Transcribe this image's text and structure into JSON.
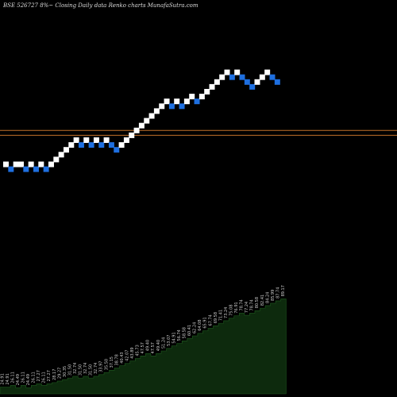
{
  "chart_data": {
    "type": "renko",
    "title": "BSE 526727 8%~ Closing Daily data Renko charts MunafaSutra.com",
    "colors": {
      "up": "#ffffff",
      "down": "#1e6fe0",
      "level_line": "#c0702a",
      "volume_area": "#0d2a0d",
      "volume_outline": "#1f5a1f",
      "volume_label": "#cccccc"
    },
    "bricks": [
      {
        "dir": "up",
        "y": 0.0
      },
      {
        "dir": "down",
        "y": -1.0
      },
      {
        "dir": "up",
        "y": 0.0
      },
      {
        "dir": "up",
        "y": 0.0
      },
      {
        "dir": "down",
        "y": -1.0
      },
      {
        "dir": "up",
        "y": 0.0
      },
      {
        "dir": "down",
        "y": -1.0
      },
      {
        "dir": "up",
        "y": 0.0
      },
      {
        "dir": "down",
        "y": -1.0
      },
      {
        "dir": "up",
        "y": 0.0
      },
      {
        "dir": "up",
        "y": 1.0
      },
      {
        "dir": "up",
        "y": 2.0
      },
      {
        "dir": "up",
        "y": 3.0
      },
      {
        "dir": "up",
        "y": 4.0
      },
      {
        "dir": "up",
        "y": 5.0
      },
      {
        "dir": "down",
        "y": 4.0
      },
      {
        "dir": "up",
        "y": 5.0
      },
      {
        "dir": "down",
        "y": 4.0
      },
      {
        "dir": "up",
        "y": 5.0
      },
      {
        "dir": "down",
        "y": 4.0
      },
      {
        "dir": "up",
        "y": 5.0
      },
      {
        "dir": "down",
        "y": 4.0
      },
      {
        "dir": "down",
        "y": 3.0
      },
      {
        "dir": "up",
        "y": 4.0
      },
      {
        "dir": "up",
        "y": 5.0
      },
      {
        "dir": "up",
        "y": 6.0
      },
      {
        "dir": "up",
        "y": 7.0
      },
      {
        "dir": "up",
        "y": 8.0
      },
      {
        "dir": "up",
        "y": 9.0
      },
      {
        "dir": "up",
        "y": 10.0
      },
      {
        "dir": "up",
        "y": 11.0
      },
      {
        "dir": "up",
        "y": 12.0
      },
      {
        "dir": "up",
        "y": 13.0
      },
      {
        "dir": "down",
        "y": 12.0
      },
      {
        "dir": "up",
        "y": 13.0
      },
      {
        "dir": "down",
        "y": 12.0
      },
      {
        "dir": "up",
        "y": 13.0
      },
      {
        "dir": "up",
        "y": 14.0
      },
      {
        "dir": "down",
        "y": 13.0
      },
      {
        "dir": "up",
        "y": 14.0
      },
      {
        "dir": "up",
        "y": 15.0
      },
      {
        "dir": "up",
        "y": 16.0
      },
      {
        "dir": "up",
        "y": 17.0
      },
      {
        "dir": "up",
        "y": 18.0
      },
      {
        "dir": "up",
        "y": 19.0
      },
      {
        "dir": "down",
        "y": 18.0
      },
      {
        "dir": "up",
        "y": 19.0
      },
      {
        "dir": "down",
        "y": 18.0
      },
      {
        "dir": "down",
        "y": 17.0
      },
      {
        "dir": "down",
        "y": 16.0
      },
      {
        "dir": "up",
        "y": 17.0
      },
      {
        "dir": "up",
        "y": 18.0
      },
      {
        "dir": "up",
        "y": 19.0
      },
      {
        "dir": "down",
        "y": 18.0
      },
      {
        "dir": "down",
        "y": 17.0
      }
    ],
    "level_lines": [
      7.0,
      6.0
    ],
    "volume": {
      "labels": [
        "24.91",
        "24.91",
        "26.11",
        "24.49",
        "26.11",
        "24.49",
        "26.11",
        "27.27",
        "26.11",
        "27.27",
        "28.17",
        "29.27",
        "30.35",
        "31.50",
        "32.74",
        "31.50",
        "32.74",
        "31.50",
        "32.74",
        "33.97",
        "35.50",
        "37.15",
        "38.78",
        "40.43",
        "42.07",
        "43.89",
        "45.73",
        "47.57",
        "49.40",
        "47.57",
        "49.40",
        "51.24",
        "53.07",
        "54.91",
        "56.74",
        "58.58",
        "60.41",
        "62.24",
        "64.08",
        "65.91",
        "67.74",
        "69.58",
        "71.41",
        "73.24",
        "75.08",
        "76.91",
        "78.74",
        "77.24",
        "78.74",
        "80.58",
        "82.41",
        "84.24",
        "85.99",
        "87.74",
        "89.17"
      ],
      "values": [
        24.91,
        24.91,
        26.11,
        24.49,
        26.11,
        24.49,
        26.11,
        27.27,
        26.11,
        27.27,
        28.17,
        29.27,
        30.35,
        31.5,
        32.74,
        31.5,
        32.74,
        31.5,
        32.74,
        33.97,
        35.5,
        37.15,
        38.78,
        40.43,
        42.07,
        43.89,
        45.73,
        47.57,
        49.4,
        47.57,
        49.4,
        51.24,
        53.07,
        54.91,
        56.74,
        58.58,
        60.41,
        62.24,
        64.08,
        65.91,
        67.74,
        69.58,
        71.41,
        73.24,
        75.08,
        76.91,
        78.74,
        77.24,
        78.74,
        80.58,
        82.41,
        84.24,
        85.99,
        87.74,
        89.17
      ]
    }
  }
}
